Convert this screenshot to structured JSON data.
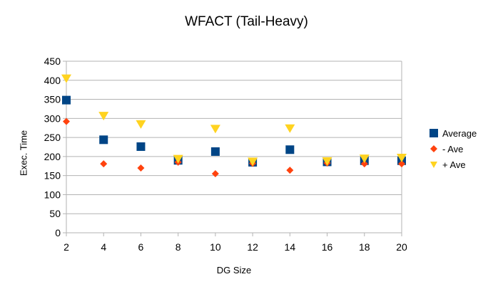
{
  "chart_data": {
    "type": "scatter",
    "title": "WFACT (Tail-Heavy)",
    "xlabel": "DG Size",
    "ylabel": "Exec. Time",
    "x": [
      2,
      4,
      6,
      8,
      10,
      12,
      14,
      16,
      18,
      20
    ],
    "xlim": [
      2,
      20
    ],
    "ylim": [
      0,
      450
    ],
    "x_ticks": [
      "2",
      "4",
      "6",
      "8",
      "10",
      "12",
      "14",
      "16",
      "18",
      "20"
    ],
    "y_ticks": [
      "0",
      "50",
      "100",
      "150",
      "200",
      "250",
      "300",
      "350",
      "400",
      "450"
    ],
    "grid": "horizontal",
    "legend_position": "right",
    "series": [
      {
        "name": "Average",
        "marker": "square",
        "color": "#004586",
        "values": [
          348,
          244,
          226,
          190,
          213,
          185,
          218,
          186,
          189,
          189
        ]
      },
      {
        "name": "- Ave",
        "marker": "diamond",
        "color": "#ff420e",
        "values": [
          292,
          181,
          170,
          185,
          155,
          182,
          164,
          183,
          181,
          181
        ]
      },
      {
        "name": "+ Ave",
        "marker": "triangle-down",
        "color": "#ffd320",
        "values": [
          404,
          306,
          284,
          193,
          272,
          186,
          273,
          187,
          194,
          196
        ]
      }
    ]
  }
}
